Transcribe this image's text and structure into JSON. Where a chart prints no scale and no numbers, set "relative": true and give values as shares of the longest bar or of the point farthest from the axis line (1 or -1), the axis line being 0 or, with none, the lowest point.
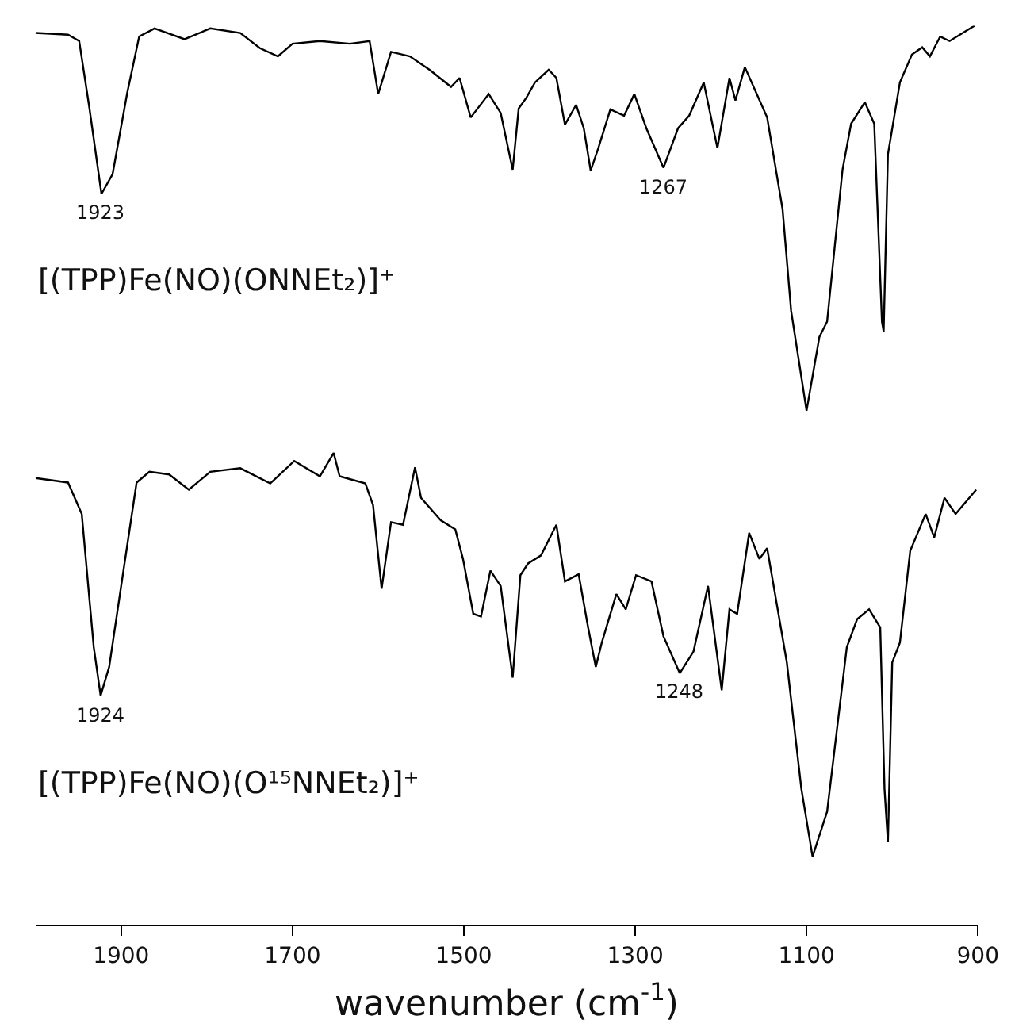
{
  "chart_data": {
    "type": "line",
    "relative": true,
    "xlim": [
      2000,
      900
    ],
    "xticks": [
      1900,
      1700,
      1500,
      1300,
      1100,
      900
    ],
    "tick_labels": "x",
    "xlabel": "wavenumber (cm$^{-1}$)",
    "line_style": "solid",
    "series": [
      {
        "color": "#000000",
        "x": [
          2000,
          1962,
          1949,
          1937,
          1923,
          1910,
          1893,
          1879,
          1861,
          1826,
          1796,
          1761,
          1738,
          1717,
          1700,
          1668,
          1633,
          1610,
          1600,
          1585,
          1563,
          1540,
          1515,
          1505,
          1492,
          1471,
          1457,
          1443,
          1436,
          1427,
          1417,
          1401,
          1392,
          1382,
          1369,
          1360,
          1352,
          1343,
          1329,
          1313,
          1301,
          1287,
          1267,
          1250,
          1237,
          1220,
          1204,
          1190,
          1183,
          1172,
          1158,
          1146,
          1128,
          1118,
          1100,
          1085,
          1076,
          1058,
          1048,
          1032,
          1021,
          1012,
          1010,
          1005,
          991,
          977,
          965,
          956,
          944,
          933,
          904
        ],
        "values": [
          0.992,
          0.99,
          0.983,
          0.908,
          0.813,
          0.835,
          0.925,
          0.988,
          0.997,
          0.985,
          0.997,
          0.992,
          0.975,
          0.966,
          0.98,
          0.983,
          0.98,
          0.983,
          0.924,
          0.971,
          0.966,
          0.951,
          0.932,
          0.942,
          0.898,
          0.924,
          0.903,
          0.84,
          0.908,
          0.92,
          0.937,
          0.951,
          0.942,
          0.89,
          0.912,
          0.886,
          0.839,
          0.864,
          0.907,
          0.9,
          0.924,
          0.886,
          0.842,
          0.886,
          0.9,
          0.937,
          0.864,
          0.942,
          0.917,
          0.954,
          0.924,
          0.898,
          0.796,
          0.683,
          0.572,
          0.654,
          0.671,
          0.84,
          0.891,
          0.915,
          0.891,
          0.671,
          0.66,
          0.857,
          0.937,
          0.968,
          0.976,
          0.966,
          0.988,
          0.983,
          1.0
        ]
      },
      {
        "color": "#000000",
        "x": [
          2000,
          1962,
          1946,
          1932,
          1924,
          1914,
          1900,
          1882,
          1867,
          1844,
          1821,
          1796,
          1761,
          1726,
          1698,
          1668,
          1652,
          1645,
          1615,
          1606,
          1596,
          1585,
          1571,
          1557,
          1550,
          1527,
          1510,
          1501,
          1489,
          1480,
          1469,
          1457,
          1443,
          1434,
          1425,
          1410,
          1392,
          1382,
          1366,
          1355,
          1346,
          1339,
          1322,
          1311,
          1299,
          1281,
          1267,
          1248,
          1232,
          1215,
          1199,
          1190,
          1181,
          1167,
          1155,
          1146,
          1123,
          1106,
          1093,
          1076,
          1053,
          1041,
          1027,
          1014,
          1009,
          1005,
          1000,
          991,
          979,
          961,
          951,
          939,
          926,
          902
        ],
        "values": [
          0.497,
          0.492,
          0.457,
          0.309,
          0.255,
          0.287,
          0.377,
          0.492,
          0.504,
          0.501,
          0.484,
          0.504,
          0.508,
          0.491,
          0.516,
          0.499,
          0.525,
          0.499,
          0.491,
          0.467,
          0.374,
          0.448,
          0.445,
          0.509,
          0.475,
          0.45,
          0.44,
          0.407,
          0.346,
          0.343,
          0.394,
          0.377,
          0.275,
          0.389,
          0.402,
          0.411,
          0.445,
          0.382,
          0.39,
          0.331,
          0.287,
          0.314,
          0.368,
          0.351,
          0.389,
          0.382,
          0.321,
          0.28,
          0.304,
          0.377,
          0.261,
          0.351,
          0.346,
          0.436,
          0.407,
          0.419,
          0.292,
          0.151,
          0.076,
          0.126,
          0.309,
          0.34,
          0.351,
          0.331,
          0.151,
          0.092,
          0.292,
          0.314,
          0.416,
          0.457,
          0.431,
          0.475,
          0.457,
          0.484
        ]
      }
    ],
    "annotations": [
      {
        "text": "1923",
        "x": 1923,
        "y": 0.813
      },
      {
        "text": "1267",
        "x": 1267,
        "y": 0.842
      },
      {
        "text": "1924",
        "x": 1924,
        "y": 0.255
      },
      {
        "text": "1248",
        "x": 1248,
        "y": 0.28
      },
      "[(TPP)Fe(NO)(ONNEt₂)]⁺",
      "[(TPP)Fe(NO)(O¹⁵NNEt₂)]⁺"
    ]
  }
}
